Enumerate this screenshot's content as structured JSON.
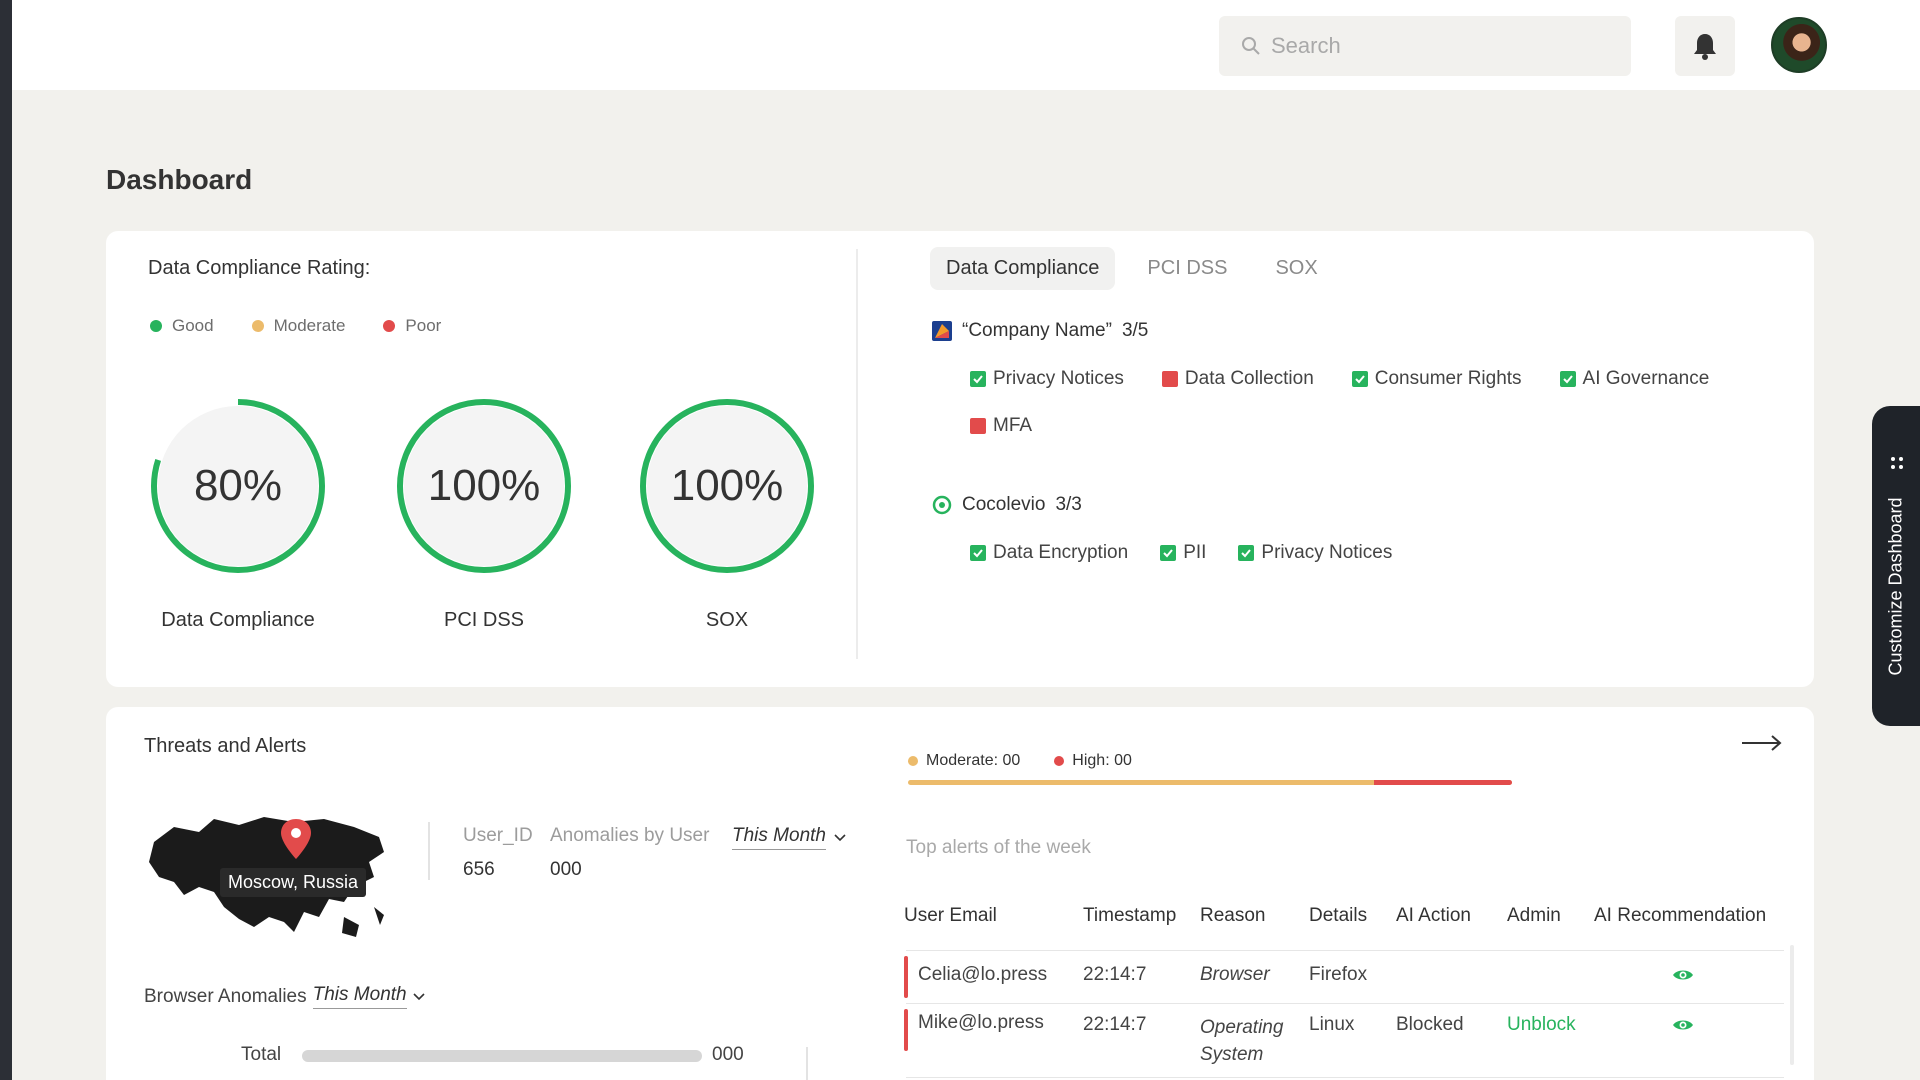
{
  "header": {
    "search_placeholder": "Search",
    "icons": [
      "search-icon",
      "bell-icon",
      "avatar"
    ]
  },
  "page": {
    "title": "Dashboard"
  },
  "compliance": {
    "title": "Data Compliance Rating:",
    "legend": [
      {
        "label": "Good",
        "color": "#27b35d"
      },
      {
        "label": "Moderate",
        "color": "#ecbb6b"
      },
      {
        "label": "Poor",
        "color": "#e24b4b"
      }
    ],
    "rings": [
      {
        "value_text": "80%",
        "label": "Data Compliance",
        "fraction": 0.8
      },
      {
        "value_text": "100%",
        "label": "PCI DSS",
        "fraction": 1.0
      },
      {
        "value_text": "100%",
        "label": "SOX",
        "fraction": 1.0
      }
    ],
    "tabs": [
      "Data Compliance",
      "PCI DSS",
      "SOX"
    ],
    "active_tab": "Data Compliance",
    "companies": [
      {
        "name": "“Company Name”",
        "score": "3/5",
        "items": [
          {
            "label": "Privacy Notices",
            "status": "ok"
          },
          {
            "label": "Data Collection",
            "status": "bad"
          },
          {
            "label": "Consumer Rights",
            "status": "ok"
          },
          {
            "label": "AI Governance",
            "status": "ok"
          },
          {
            "label": "MFA",
            "status": "bad"
          }
        ]
      },
      {
        "name": "Cocolevio",
        "score": "3/3",
        "items": [
          {
            "label": "Data Encryption",
            "status": "ok"
          },
          {
            "label": "PII",
            "status": "ok"
          },
          {
            "label": "Privacy Notices",
            "status": "ok"
          }
        ]
      }
    ]
  },
  "customize": {
    "label": "Customize Dashboard"
  },
  "threats": {
    "title": "Threats and Alerts",
    "map_location": "Moscow, Russia",
    "user_id_label": "User_ID",
    "user_id_value": "656",
    "anomalies_label": "Anomalies by User",
    "anomalies_value": "000",
    "anomalies_period": "This Month",
    "browser_label": "Browser Anomalies",
    "browser_period": "This Month",
    "total_label": "Total",
    "total_value": "000",
    "moderate_label": "Moderate: 00",
    "high_label": "High: 00",
    "top_alerts_label": "Top alerts of the week",
    "columns": [
      "User Email",
      "Timestamp",
      "Reason",
      "Details",
      "AI Action",
      "Admin",
      "AI Recommendation"
    ],
    "rows": [
      {
        "email": "Celia@lo.press",
        "timestamp": "22:14:7",
        "reason": "Browser",
        "details": "Firefox",
        "ai_action": "",
        "admin": ""
      },
      {
        "email": "Mike@lo.press",
        "timestamp": "22:14:7",
        "reason": "Operating System",
        "details": "Linux",
        "ai_action": "Blocked",
        "admin": "Unblock"
      }
    ]
  }
}
